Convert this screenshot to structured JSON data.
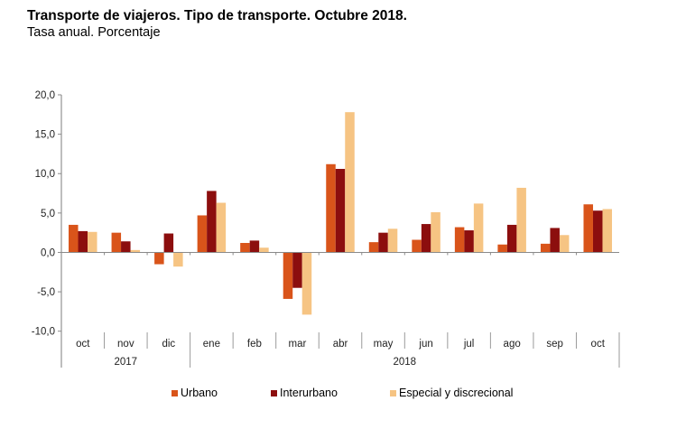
{
  "chart_data": {
    "type": "bar",
    "title": "Transporte de viajeros. Tipo de transporte. Octubre 2018.",
    "subtitle": "Tasa anual. Porcentaje",
    "xlabel": "",
    "ylabel": "",
    "ylim": [
      -10,
      20
    ],
    "yticks": [
      {
        "value": 20,
        "label": "20,0"
      },
      {
        "value": 15,
        "label": "15,0"
      },
      {
        "value": 10,
        "label": "10,0"
      },
      {
        "value": 5,
        "label": "5,0"
      },
      {
        "value": 0,
        "label": "0,0"
      },
      {
        "value": -5,
        "label": "-5,0"
      },
      {
        "value": -10,
        "label": "-10,0"
      }
    ],
    "grid": false,
    "categories": [
      "oct",
      "nov",
      "dic",
      "ene",
      "feb",
      "mar",
      "abr",
      "may",
      "jun",
      "jul",
      "ago",
      "sep",
      "oct"
    ],
    "year_groups": [
      {
        "label": "2017",
        "start": 0,
        "end": 2
      },
      {
        "label": "2018",
        "start": 3,
        "end": 12
      }
    ],
    "series": [
      {
        "name": "Urbano",
        "color": "#D9541A",
        "values": [
          3.5,
          2.5,
          -1.5,
          4.7,
          1.2,
          -5.9,
          11.2,
          1.3,
          1.6,
          3.2,
          1.0,
          1.1,
          6.1
        ]
      },
      {
        "name": "Interurbano",
        "color": "#8C0E0E",
        "values": [
          2.7,
          1.4,
          2.4,
          7.8,
          1.5,
          -4.5,
          10.6,
          2.5,
          3.6,
          2.8,
          3.5,
          3.1,
          5.3
        ]
      },
      {
        "name": "Especial y discrecional",
        "color": "#F6C483",
        "values": [
          2.6,
          0.3,
          -1.8,
          6.3,
          0.6,
          -7.9,
          17.8,
          3.0,
          5.1,
          6.2,
          8.2,
          2.2,
          5.5
        ]
      }
    ],
    "legend_position": "bottom"
  }
}
